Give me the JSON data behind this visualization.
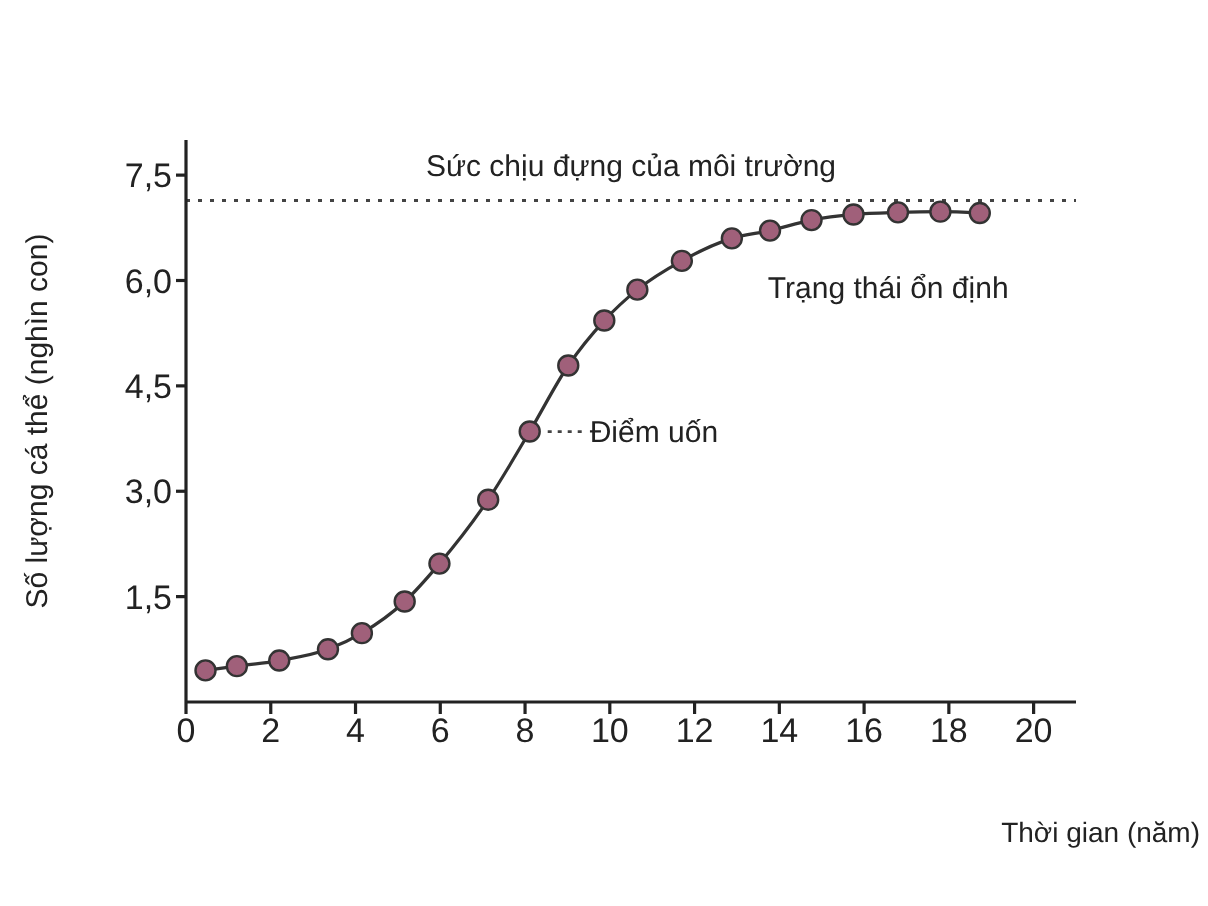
{
  "chart_data": {
    "type": "line",
    "xlabel": "Thời gian (năm)",
    "ylabel": "Số lượng cá thể (nghìn con)",
    "x": [
      0.46,
      1.2,
      2.2,
      3.35,
      4.15,
      5.16,
      5.98,
      7.13,
      8.11,
      9.02,
      9.87,
      10.65,
      11.7,
      12.88,
      13.78,
      14.76,
      15.75,
      16.8,
      17.8,
      18.73
    ],
    "series": [
      {
        "color": "#a0607a",
        "values": [
          0.45,
          0.51,
          0.59,
          0.75,
          0.98,
          1.43,
          1.97,
          2.88,
          3.85,
          4.79,
          5.43,
          5.87,
          6.28,
          6.6,
          6.71,
          6.86,
          6.94,
          6.97,
          6.98,
          6.96
        ]
      }
    ],
    "xlim": [
      0,
      21
    ],
    "xticks": [
      0,
      2,
      4,
      6,
      8,
      10,
      12,
      14,
      16,
      18,
      20
    ],
    "ylim": [
      0,
      8
    ],
    "yticks": [
      {
        "value": 1.5,
        "label": "1,5"
      },
      {
        "value": 3,
        "label": "3,0"
      },
      {
        "value": 4.5,
        "label": "4,5"
      },
      {
        "value": 6,
        "label": "6,0"
      },
      {
        "value": 7.5,
        "label": "7,5"
      }
    ],
    "ref_lines": [
      {
        "axis": "y",
        "value": 7.14,
        "label": "Sức chịu đựng của môi trường",
        "line_style": "dotted",
        "color": "#444444"
      }
    ],
    "annotations": [
      {
        "text": "Điểm uốn",
        "x": 8.11,
        "y": 3.85
      },
      {
        "text": "Trạng thái ổn định",
        "x": 12.88,
        "y": 6.6
      }
    ],
    "marker": "circle",
    "line_style": "solid",
    "grid": false,
    "legend": false
  }
}
